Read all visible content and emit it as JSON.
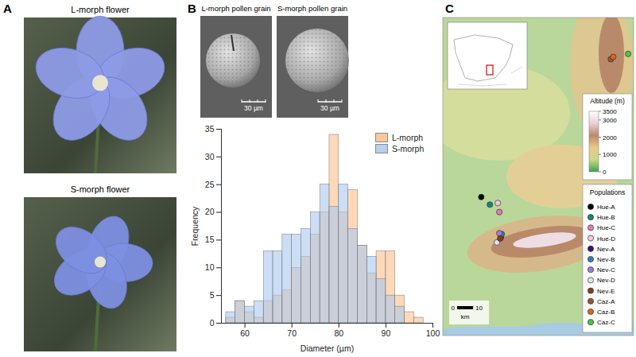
{
  "figure": {
    "panels": [
      {
        "letter": "A",
        "photos": [
          {
            "title": "L-morph flower"
          },
          {
            "title": "S-morph flower"
          }
        ]
      },
      {
        "letter": "B",
        "images": [
          {
            "title": "L-morph pollen grain",
            "scale_bar": {
              "value": 30,
              "label": "30 µm"
            }
          },
          {
            "title": "S-morph pollen grain",
            "scale_bar": {
              "value": 30,
              "label": "30 µm"
            }
          }
        ]
      },
      {
        "letter": "C",
        "map": {
          "lon_range": [
            -4.0,
            -2.65
          ],
          "lat_range": [
            36.5,
            38.3
          ],
          "colorbar": {
            "title": "Altitude (m)",
            "range": [
              0,
              3500
            ],
            "ticks": [
              0,
              1000,
              2000,
              3000,
              3500
            ],
            "colors": [
              "#3fa34d",
              "#c9d98a",
              "#e8c98a",
              "#b98a6a",
              "#e8d0d8",
              "#ffffff"
            ]
          },
          "legend_title": "Populations",
          "populations": [
            {
              "name": "Hue-A",
              "color": "#000000",
              "lon": -3.728,
              "lat": 37.284
            },
            {
              "name": "Hue-B",
              "color": "#16877a",
              "lon": -3.667,
              "lat": 37.241
            },
            {
              "name": "Hue-C",
              "color": "#e07bb5",
              "lon": -3.6,
              "lat": 37.199
            },
            {
              "name": "Hue-D",
              "color": "#f4c6e0",
              "lon": -3.611,
              "lat": 37.25
            },
            {
              "name": "Nev-A",
              "color": "#3f0f7a",
              "lon": -3.589,
              "lat": 37.057
            },
            {
              "name": "Nev-B",
              "color": "#2c7fb8",
              "lon": -3.583,
              "lat": 37.074
            },
            {
              "name": "Nev-C",
              "color": "#9e7bdc",
              "lon": -3.6,
              "lat": 37.079
            },
            {
              "name": "Nev-D",
              "color": "#dde4f0",
              "lon": -3.617,
              "lat": 37.027
            },
            {
              "name": "Nev-E",
              "color": "#8c3a0f",
              "lon": -3.594,
              "lat": 37.049
            },
            {
              "name": "Caz-A",
              "color": "#a0522d",
              "lon": -2.811,
              "lat": 38.064
            },
            {
              "name": "Caz-B",
              "color": "#d2691e",
              "lon": -2.794,
              "lat": 38.077
            },
            {
              "name": "Caz-C",
              "color": "#4cc34c",
              "lon": -2.689,
              "lat": 38.094
            }
          ],
          "scale_bar": {
            "value": 10,
            "ticks": [
              0,
              10
            ],
            "unit": "km"
          }
        }
      }
    ]
  },
  "chart_data": {
    "type": "histogram",
    "bins": [
      56,
      58,
      60,
      62,
      64,
      66,
      68,
      70,
      72,
      74,
      76,
      78,
      80,
      82,
      84,
      86,
      88,
      90,
      92,
      94,
      96,
      98
    ],
    "series": [
      {
        "name": "L-morph",
        "color": "#fcbf8a",
        "values": [
          1,
          4,
          2,
          1,
          4,
          5,
          6,
          10,
          12,
          16,
          20,
          34,
          20,
          24,
          14,
          9,
          13,
          13,
          5,
          2,
          1
        ]
      },
      {
        "name": "S-morph",
        "color": "#a9c8ee",
        "values": [
          2,
          4,
          3,
          4,
          13,
          13,
          16,
          16,
          17,
          20,
          25,
          21,
          25,
          17,
          14,
          12,
          8,
          5,
          3,
          0,
          0
        ]
      }
    ],
    "xlabel": "Diameter (µm)",
    "ylabel": "Frequency",
    "xlim": [
      55,
      100
    ],
    "xticks": [
      60,
      70,
      80,
      90,
      100
    ],
    "ylim": [
      0,
      35
    ],
    "yticks": [
      0,
      5,
      10,
      15,
      20,
      25,
      30,
      35
    ],
    "legend": "top-right"
  }
}
